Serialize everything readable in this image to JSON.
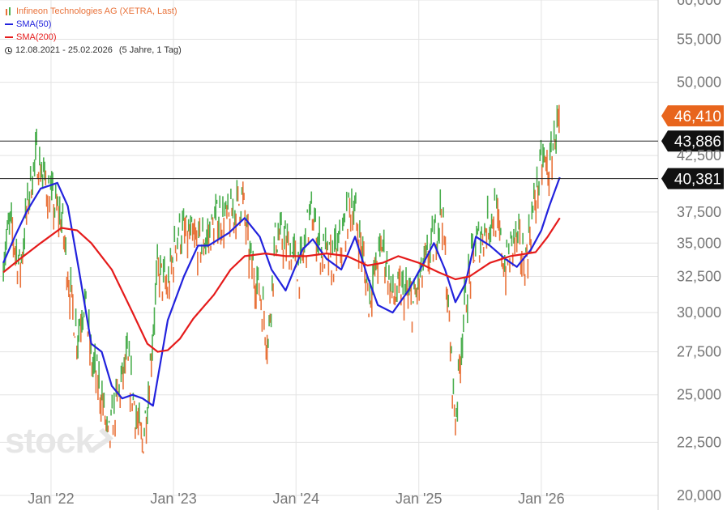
{
  "legend": {
    "instrument": "Infineon Technologies AG (XETRA, Last)",
    "sma50": "SMA(50)",
    "sma200": "SMA(200)",
    "range": "12.08.2021 - 25.02.2026",
    "period": "(5 Jahre, 1 Tag)"
  },
  "watermark": "stock",
  "colors": {
    "price_up": "#4caf50",
    "price_down": "#e9733b",
    "sma50": "#2222dd",
    "sma200": "#e51b1b",
    "last_label": "#e8651d",
    "level_label": "#111111"
  },
  "chart_data": {
    "type": "line",
    "yscale": "log",
    "ylim": [
      20000,
      60000
    ],
    "xlim": [
      "2021-08-12",
      "2026-02-25"
    ],
    "yticks": [
      {
        "value": 20000,
        "label": "20,000"
      },
      {
        "value": 22500,
        "label": "22,500"
      },
      {
        "value": 25000,
        "label": "25,000"
      },
      {
        "value": 27500,
        "label": "27,500"
      },
      {
        "value": 30000,
        "label": "30,000"
      },
      {
        "value": 32500,
        "label": "32,500"
      },
      {
        "value": 35000,
        "label": "35,000"
      },
      {
        "value": 37500,
        "label": "37,500"
      },
      {
        "value": 42500,
        "label": "42,500"
      },
      {
        "value": 50000,
        "label": "50,000"
      },
      {
        "value": 55000,
        "label": "55,000"
      },
      {
        "value": 60000,
        "label": "60,000"
      }
    ],
    "xticks": [
      {
        "value": "2022-01-01",
        "label": "Jan '22"
      },
      {
        "value": "2023-01-01",
        "label": "Jan '23"
      },
      {
        "value": "2024-01-01",
        "label": "Jan '24"
      },
      {
        "value": "2025-01-01",
        "label": "Jan '25"
      },
      {
        "value": "2026-01-01",
        "label": "Jan '26"
      }
    ],
    "last_value": {
      "value": 46410,
      "label": "46,410"
    },
    "levels": [
      {
        "value": 43886,
        "label": "43,886"
      },
      {
        "value": 40381,
        "label": "40,381"
      }
    ],
    "grid": true,
    "legend_position": "top-left",
    "series": [
      {
        "name": "Infineon Technologies AG (XETRA, Last)",
        "x": [
          "2021-08-12",
          "2021-09-01",
          "2021-10-01",
          "2021-11-01",
          "2021-11-20",
          "2021-12-15",
          "2022-01-10",
          "2022-02-01",
          "2022-03-01",
          "2022-03-20",
          "2022-04-10",
          "2022-05-01",
          "2022-06-01",
          "2022-06-20",
          "2022-07-15",
          "2022-08-15",
          "2022-09-15",
          "2022-09-30",
          "2022-10-20",
          "2022-11-15",
          "2022-12-15",
          "2023-01-15",
          "2023-02-15",
          "2023-03-15",
          "2023-04-15",
          "2023-05-15",
          "2023-06-15",
          "2023-07-25",
          "2023-08-15",
          "2023-09-15",
          "2023-10-10",
          "2023-11-01",
          "2023-12-01",
          "2024-01-15",
          "2024-02-15",
          "2024-03-15",
          "2024-04-15",
          "2024-05-15",
          "2024-06-15",
          "2024-07-15",
          "2024-08-05",
          "2024-09-15",
          "2024-10-15",
          "2024-11-15",
          "2024-12-15",
          "2025-01-15",
          "2025-02-15",
          "2025-03-10",
          "2025-04-07",
          "2025-04-20",
          "2025-05-15",
          "2025-06-15",
          "2025-07-15",
          "2025-08-15",
          "2025-09-15",
          "2025-10-15",
          "2025-11-15",
          "2025-12-10",
          "2026-01-05",
          "2026-01-25",
          "2026-02-10",
          "2026-02-25"
        ],
        "values": [
          34000,
          36500,
          33000,
          40000,
          42500,
          40000,
          38000,
          37000,
          31000,
          28500,
          31000,
          27000,
          25000,
          22500,
          24500,
          27000,
          23500,
          22300,
          25500,
          33000,
          31500,
          36000,
          35500,
          34800,
          35500,
          37200,
          36800,
          38800,
          34000,
          31500,
          28000,
          35500,
          35000,
          33000,
          37500,
          34500,
          33500,
          35000,
          38500,
          34500,
          31000,
          35000,
          31000,
          31500,
          30500,
          33000,
          35000,
          38000,
          27000,
          23500,
          30000,
          34500,
          36000,
          37500,
          33000,
          35500,
          33500,
          38000,
          42000,
          41000,
          44500,
          46410
        ]
      },
      {
        "name": "SMA(50)",
        "x": [
          "2021-08-12",
          "2021-09-15",
          "2021-10-20",
          "2021-12-01",
          "2022-01-20",
          "2022-02-20",
          "2022-03-25",
          "2022-05-01",
          "2022-06-01",
          "2022-07-01",
          "2022-08-01",
          "2022-09-01",
          "2022-10-01",
          "2022-11-01",
          "2022-12-15",
          "2023-02-01",
          "2023-03-15",
          "2023-04-15",
          "2023-06-15",
          "2023-08-01",
          "2023-09-15",
          "2023-10-20",
          "2023-12-01",
          "2024-01-20",
          "2024-02-20",
          "2024-04-01",
          "2024-05-15",
          "2024-06-25",
          "2024-08-01",
          "2024-09-01",
          "2024-10-15",
          "2024-12-01",
          "2025-01-15",
          "2025-02-15",
          "2025-03-20",
          "2025-04-20",
          "2025-05-20",
          "2025-06-20",
          "2025-08-01",
          "2025-09-15",
          "2025-10-20",
          "2025-12-01",
          "2026-01-01",
          "2026-01-25",
          "2026-02-25"
        ],
        "values": [
          33500,
          35500,
          37500,
          39500,
          40000,
          38000,
          33000,
          28000,
          27500,
          25500,
          24800,
          25000,
          24800,
          24400,
          29500,
          32500,
          34800,
          34800,
          35800,
          37000,
          35500,
          33000,
          31500,
          34500,
          35300,
          33800,
          33000,
          35500,
          32500,
          30500,
          30000,
          31500,
          33500,
          35000,
          33000,
          30700,
          32000,
          35500,
          34800,
          33800,
          33200,
          34500,
          36000,
          38000,
          40500
        ]
      },
      {
        "name": "SMA(200)",
        "x": [
          "2021-08-12",
          "2021-10-01",
          "2021-12-01",
          "2022-02-01",
          "2022-03-20",
          "2022-05-01",
          "2022-07-01",
          "2022-09-01",
          "2022-10-15",
          "2022-11-15",
          "2022-12-15",
          "2023-01-20",
          "2023-03-01",
          "2023-05-01",
          "2023-06-20",
          "2023-08-01",
          "2023-10-01",
          "2023-12-01",
          "2024-02-01",
          "2024-04-01",
          "2024-06-01",
          "2024-08-01",
          "2024-09-15",
          "2024-11-01",
          "2025-01-01",
          "2025-03-01",
          "2025-04-20",
          "2025-06-01",
          "2025-08-01",
          "2025-10-01",
          "2025-12-15",
          "2026-01-20",
          "2026-02-25"
        ],
        "values": [
          32800,
          33800,
          35000,
          36200,
          36000,
          35000,
          33000,
          30000,
          28000,
          27500,
          27600,
          28300,
          29600,
          31200,
          33000,
          34000,
          34200,
          34000,
          34000,
          34200,
          34000,
          33300,
          33500,
          34000,
          33500,
          32800,
          32300,
          32500,
          33500,
          34000,
          34300,
          35500,
          37000
        ]
      }
    ]
  }
}
